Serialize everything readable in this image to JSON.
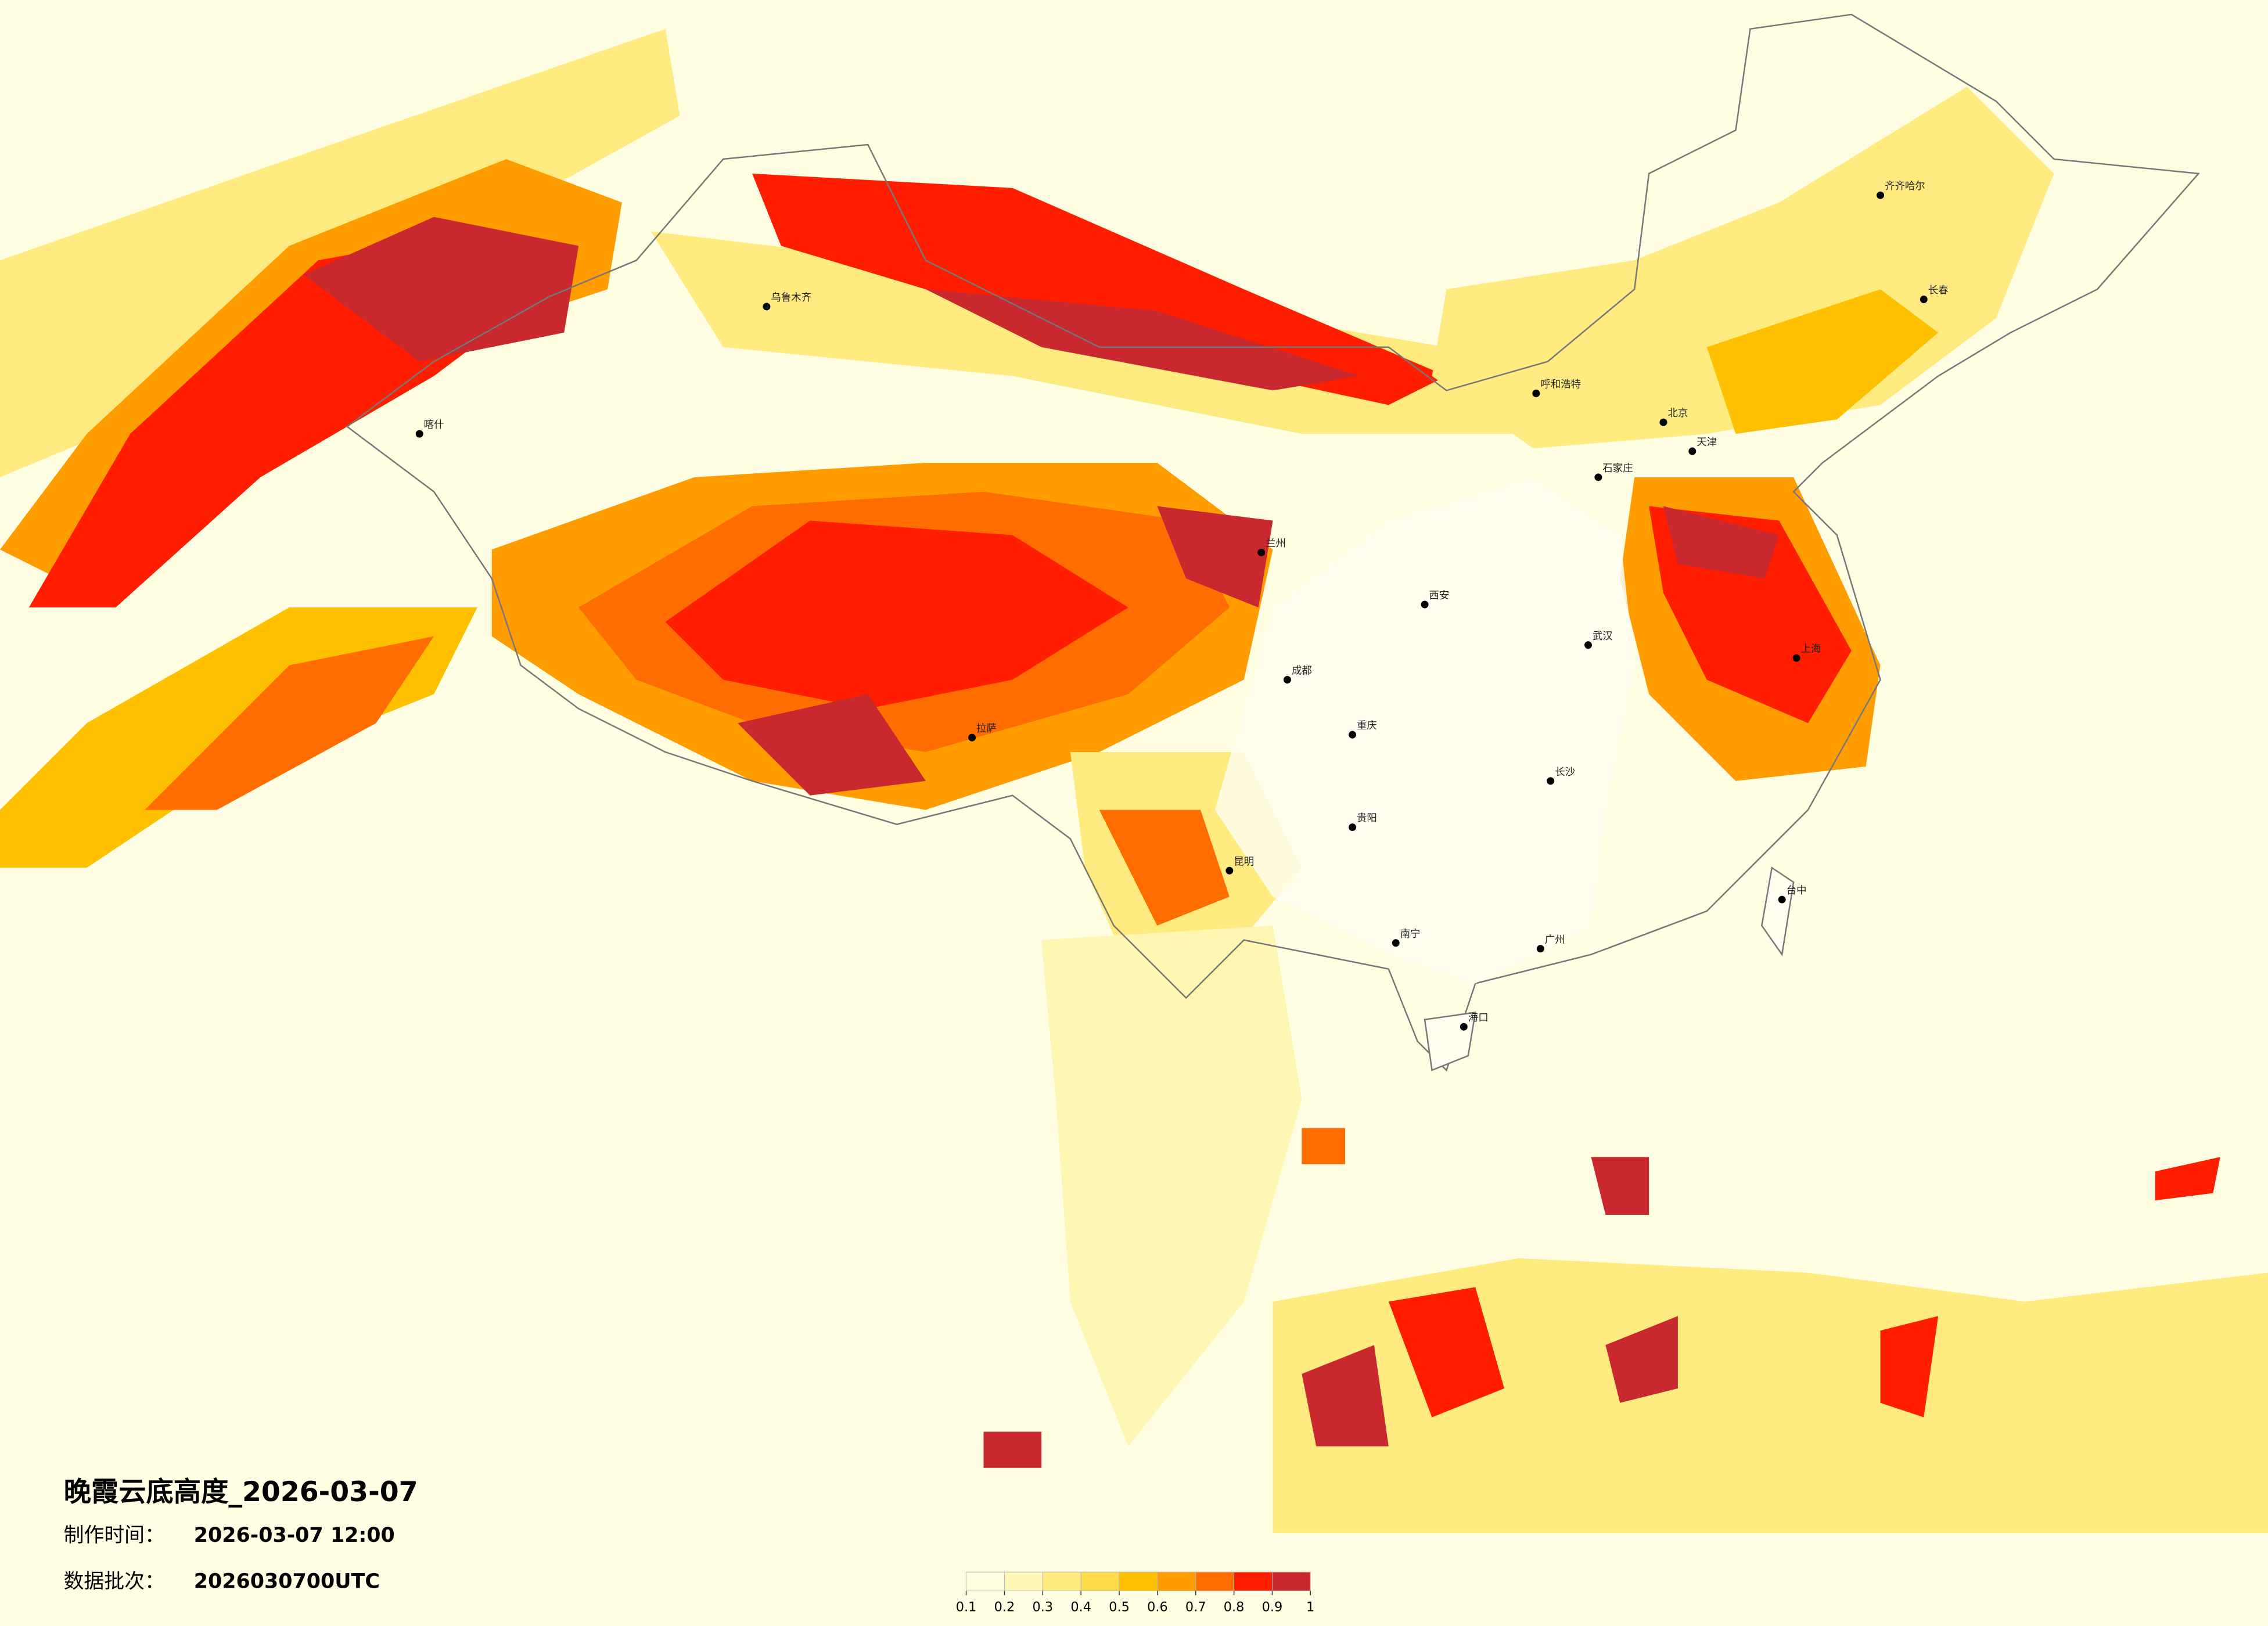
{
  "title": "晚霞云底高度_2026-03-07",
  "info": [
    {
      "label": "制作时间：",
      "value": "2026-03-07 12:00"
    },
    {
      "label": "数据批次：",
      "value": "2026030700UTC"
    }
  ],
  "legend": {
    "ticks": [
      0.1,
      0.2,
      0.3,
      0.4,
      0.5,
      0.6,
      0.7,
      0.8,
      0.9,
      1
    ],
    "colors": [
      "#fffde0",
      "#fff6b4",
      "#ffeb80",
      "#ffdb4c",
      "#ffc000",
      "#ff9c00",
      "#ff6c00",
      "#ff1e00",
      "#c8282e"
    ]
  },
  "cities": [
    "北京",
    "天津",
    "石家庄",
    "呼和浩特",
    "西安",
    "兰州",
    "成都",
    "重庆",
    "武汉",
    "长沙",
    "贵阳",
    "昆明",
    "南宁",
    "广州",
    "海口",
    "上海",
    "台中",
    "长春",
    "齐齐哈尔",
    "乌鲁木齐",
    "喀什",
    "拉萨"
  ]
}
